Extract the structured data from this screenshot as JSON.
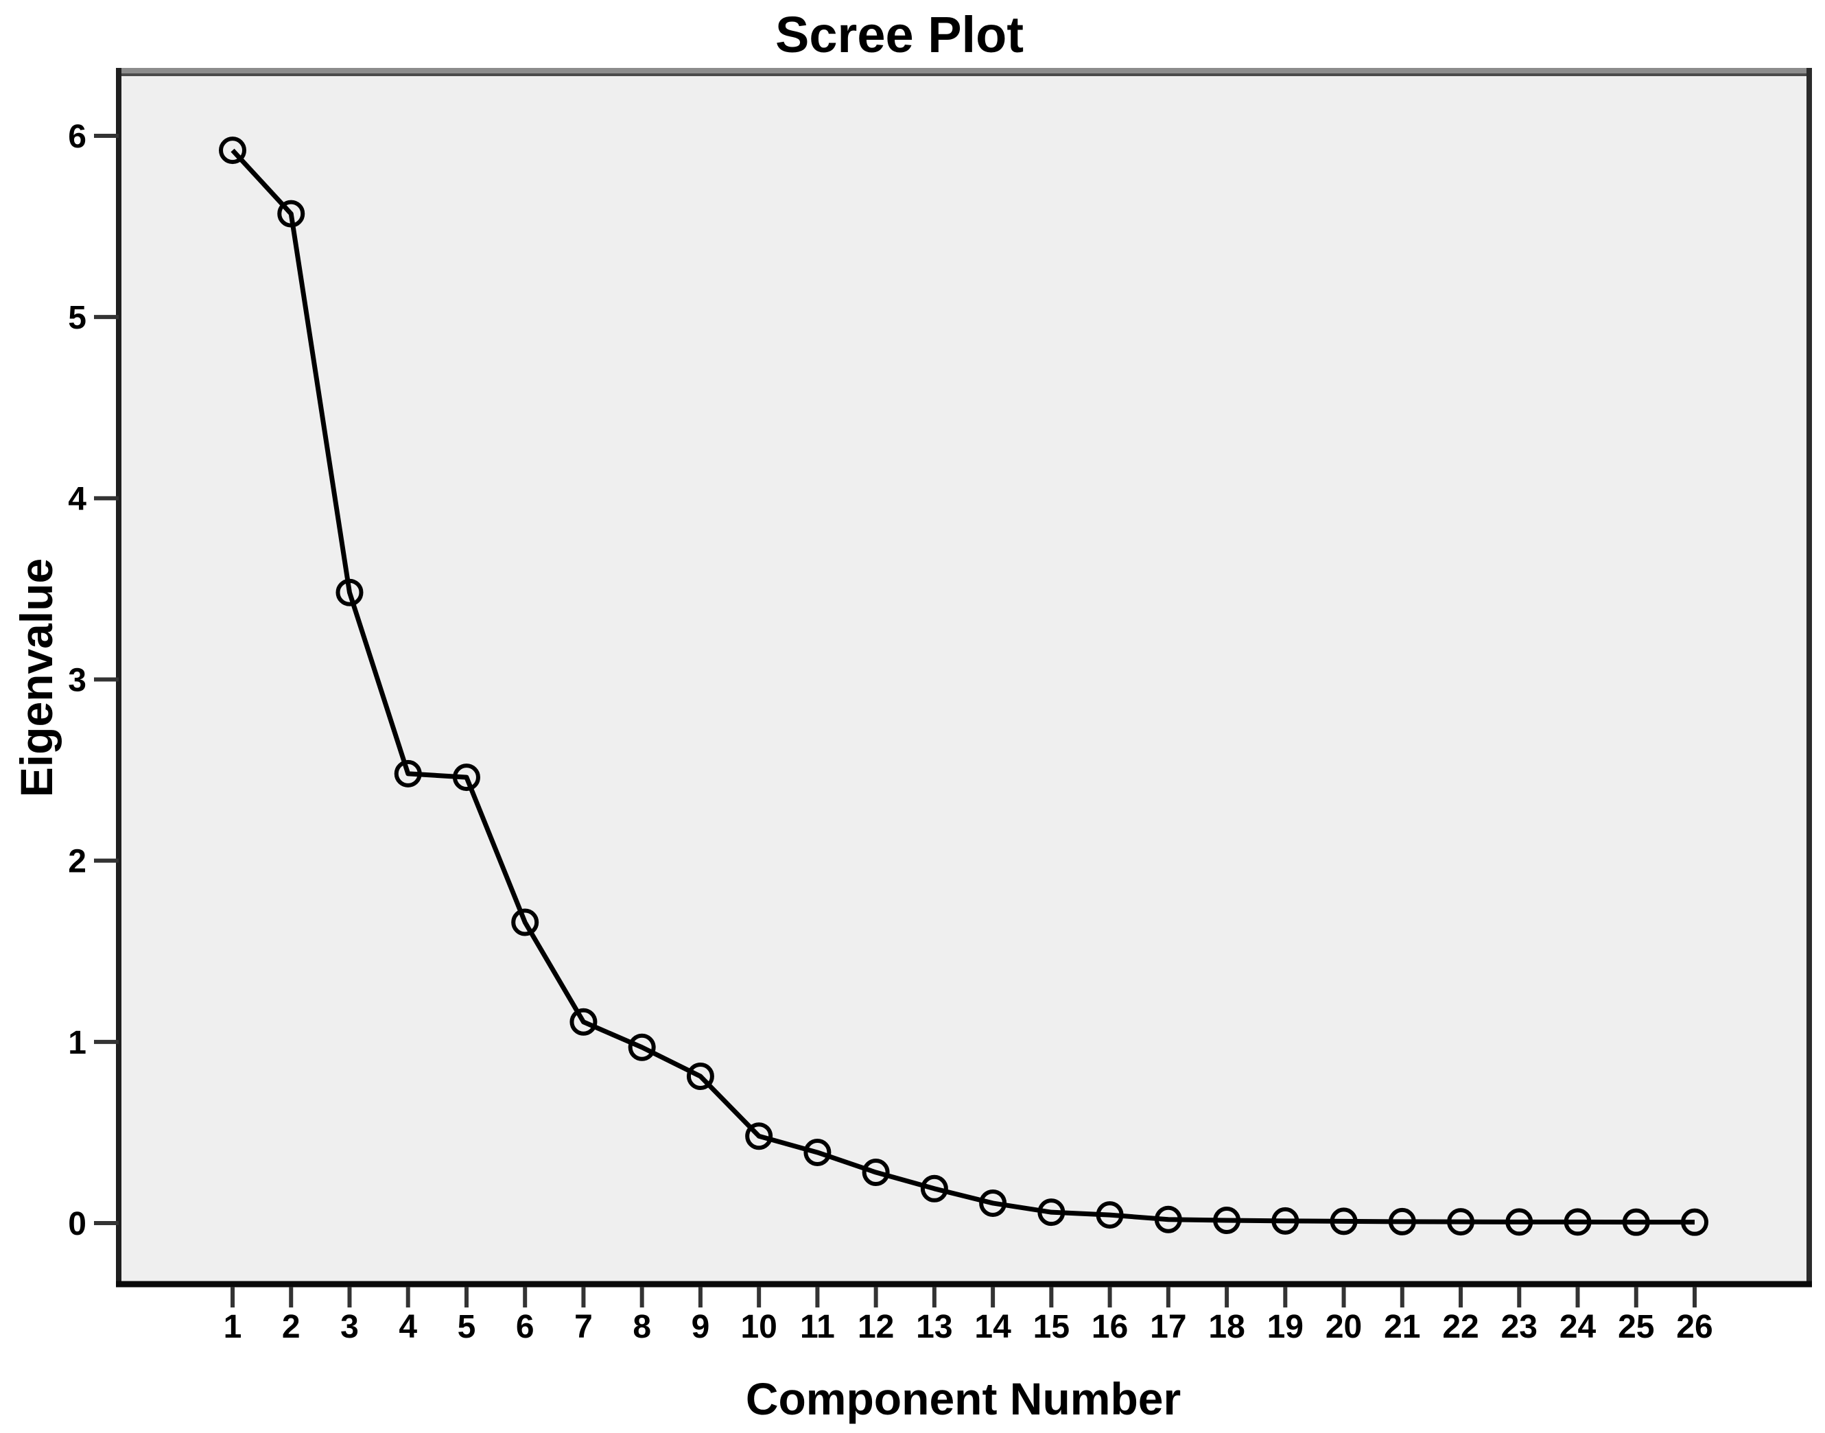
{
  "chart_data": {
    "type": "line",
    "title": "Scree Plot",
    "xlabel": "Component Number",
    "ylabel": "Eigenvalue",
    "x": [
      1,
      2,
      3,
      4,
      5,
      6,
      7,
      8,
      9,
      10,
      11,
      12,
      13,
      14,
      15,
      16,
      17,
      18,
      19,
      20,
      21,
      22,
      23,
      24,
      25,
      26
    ],
    "values": [
      5.92,
      5.57,
      3.48,
      2.48,
      2.46,
      1.66,
      1.11,
      0.97,
      0.81,
      0.48,
      0.39,
      0.28,
      0.19,
      0.11,
      0.06,
      0.045,
      0.02,
      0.015,
      0.012,
      0.01,
      0.008,
      0.007,
      0.006,
      0.006,
      0.005,
      0.005
    ],
    "y_ticks": [
      0,
      1,
      2,
      3,
      4,
      5,
      6
    ],
    "ylim": [
      -0.34,
      6.36
    ],
    "xlim": [
      -0.94,
      27.96
    ],
    "grid": false,
    "legend": "none",
    "marker": "open-circle",
    "colors": {
      "line": "#000000",
      "marker_stroke": "#000000",
      "plot_background": "#efefef",
      "page_background": "#ffffff",
      "frame_top": "#8c8c8c",
      "frame_dark": "#1f1f1f",
      "tick": "#333333",
      "text": "#000000"
    }
  }
}
